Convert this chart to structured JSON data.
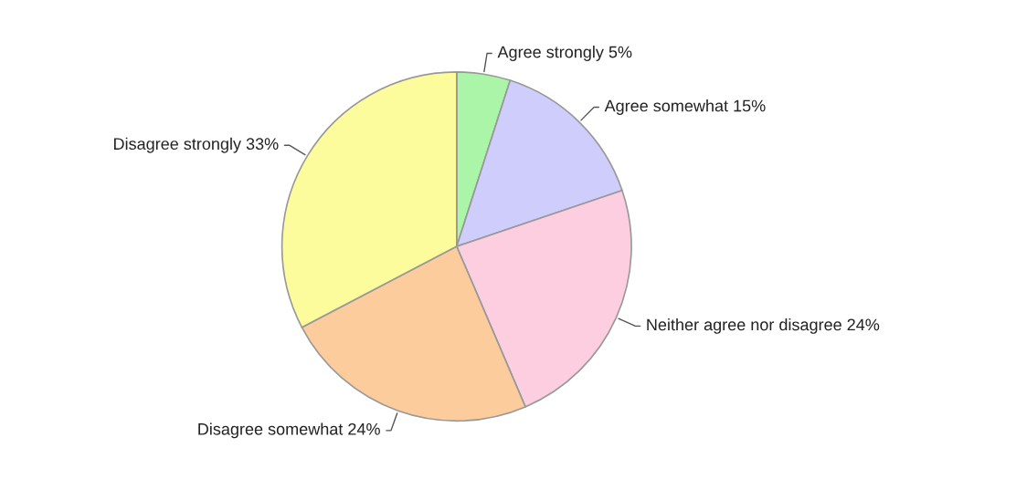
{
  "chart_data": {
    "type": "pie",
    "categories": [
      "Agree strongly",
      "Agree somewhat",
      "Neither agree nor disagree",
      "Disagree somewhat",
      "Disagree strongly"
    ],
    "values": [
      5,
      15,
      24,
      24,
      33
    ],
    "value_labels": [
      "5%",
      "15%",
      "24%",
      "24%",
      "33%"
    ],
    "colors": [
      "#aaf5a8",
      "#cfcdfb",
      "#fdcde0",
      "#fdcc9c",
      "#fdfc9c"
    ]
  }
}
